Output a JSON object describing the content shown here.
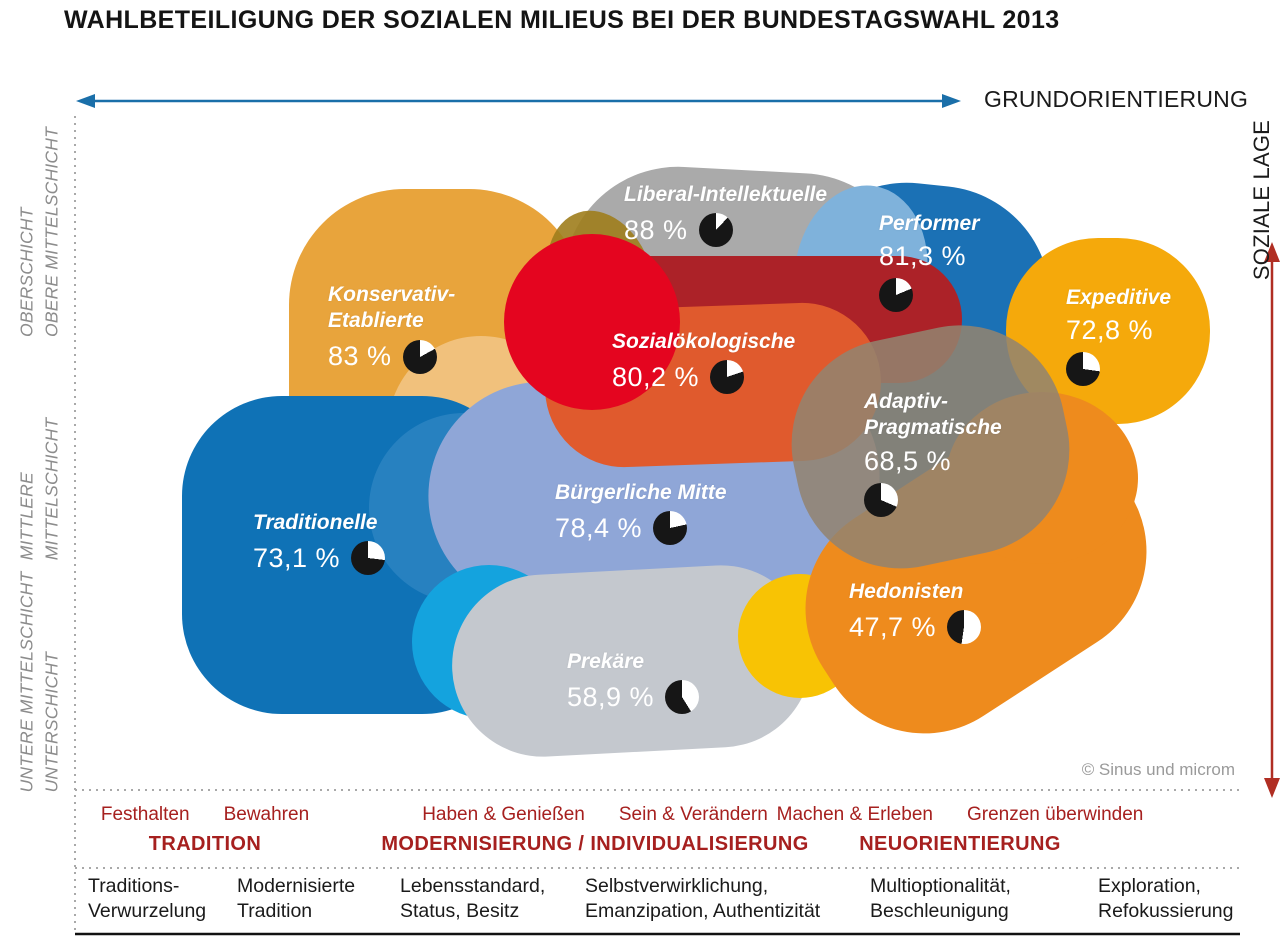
{
  "title": "WAHLBETEILIGUNG DER SOZIALEN MILIEUS BEI DER BUNDESTAGSWAHL 2013",
  "copyright": "© Sinus und microm",
  "axes": {
    "x_label": "GRUNDORIENTIERUNG",
    "y_label": "SOZIALE LAGE",
    "x_arrow_color": "#1a6fa9",
    "y_arrow_color": "#b02e23"
  },
  "social_strata": [
    {
      "lines": [
        "OBERSCHICHT",
        "OBERE MITTELSCHICHT"
      ]
    },
    {
      "lines": [
        "MITTLERE",
        "MITTELSCHICHT"
      ]
    },
    {
      "lines": [
        "UNTERE MITTELSCHICHT",
        "UNTERSCHICHT"
      ]
    }
  ],
  "orientation_groups": [
    {
      "sublabels": [
        "Festhalten",
        "Bewahren"
      ],
      "heading": "TRADITION"
    },
    {
      "sublabels": [
        "Haben & Genießen",
        "Sein & Verändern"
      ],
      "heading": "MODERNISIERUNG / INDIVIDUALISIERUNG"
    },
    {
      "sublabels": [
        "Machen & Erleben",
        "Grenzen überwinden"
      ],
      "heading": "NEUORIENTIERUNG"
    }
  ],
  "descriptors": [
    {
      "lines": [
        "Traditions-",
        "Verwurzelung"
      ]
    },
    {
      "lines": [
        "Modernisierte",
        "Tradition"
      ]
    },
    {
      "lines": [
        "Lebensstandard,",
        "Status, Besitz"
      ]
    },
    {
      "lines": [
        "Selbstverwirklichung,",
        "Emanzipation, Authentizität"
      ]
    },
    {
      "lines": [
        "Multioptionalität,",
        "Beschleunigung"
      ]
    },
    {
      "lines": [
        "Exploration,",
        "Refokussierung"
      ]
    }
  ],
  "milieus": [
    {
      "id": "konservativ-etablierte",
      "name_lines": [
        "Konservativ-",
        "Etablierte"
      ],
      "value_label": "83 %",
      "value_pct": 83.0,
      "color": "#e8a43c"
    },
    {
      "id": "liberal-intellektuelle",
      "name_lines": [
        "Liberal-Intellektuelle"
      ],
      "value_label": "88 %",
      "value_pct": 88.0,
      "color": "#aaaaaa"
    },
    {
      "id": "performer",
      "name_lines": [
        "Performer"
      ],
      "value_label": "81,3 %",
      "value_pct": 81.3,
      "color": "#1b71b5"
    },
    {
      "id": "expeditive",
      "name_lines": [
        "Expeditive"
      ],
      "value_label": "72,8 %",
      "value_pct": 72.8,
      "color": "#f5a90b"
    },
    {
      "id": "sozialoekologische",
      "name_lines": [
        "Sozialökologische"
      ],
      "value_label": "80,2 %",
      "value_pct": 80.2,
      "color": "#e05a2d"
    },
    {
      "id": "adaptiv-pragmatische",
      "name_lines": [
        "Adaptiv-",
        "Pragmatische"
      ],
      "value_label": "68,5 %",
      "value_pct": 68.5,
      "color": "#938470"
    },
    {
      "id": "traditionelle",
      "name_lines": [
        "Traditionelle"
      ],
      "value_label": "73,1 %",
      "value_pct": 73.1,
      "color": "#0f72b6"
    },
    {
      "id": "buergerliche-mitte",
      "name_lines": [
        "Bürgerliche Mitte"
      ],
      "value_label": "78,4 %",
      "value_pct": 78.4,
      "color": "#8fa6d7"
    },
    {
      "id": "prekaere",
      "name_lines": [
        "Prekäre"
      ],
      "value_label": "58,9 %",
      "value_pct": 58.9,
      "color": "#c4c8ce"
    },
    {
      "id": "hedonisten",
      "name_lines": [
        "Hedonisten"
      ],
      "value_label": "47,7 %",
      "value_pct": 47.7,
      "color": "#ee8b1d"
    }
  ],
  "pie_colors": {
    "filled": "#161616",
    "empty": "#ffffff"
  },
  "chart_data": {
    "type": "scatter",
    "title": "Wahlbeteiligung der sozialen Milieus bei der Bundestagswahl 2013",
    "xlabel": "GRUNDORIENTIERUNG",
    "ylabel": "SOZIALE LAGE",
    "x_axis_categories": [
      "TRADITION",
      "MODERNISIERUNG / INDIVIDUALISIERUNG",
      "NEUORIENTIERUNG"
    ],
    "y_axis_categories": [
      "UNTERE MITTELSCHICHT / UNTERSCHICHT",
      "MITTLERE MITTELSCHICHT",
      "OBERSCHICHT / OBERE MITTELSCHICHT"
    ],
    "value_unit": "percent voter turnout",
    "points": [
      {
        "name": "Konservativ-Etablierte",
        "turnout_pct": 83.0,
        "label": "83 %",
        "x": 22,
        "y": 75
      },
      {
        "name": "Liberal-Intellektuelle",
        "turnout_pct": 88.0,
        "label": "88 %",
        "x": 46,
        "y": 85
      },
      {
        "name": "Performer",
        "turnout_pct": 81.3,
        "label": "81,3 %",
        "x": 63,
        "y": 80
      },
      {
        "name": "Expeditive",
        "turnout_pct": 72.8,
        "label": "72,8 %",
        "x": 85,
        "y": 70
      },
      {
        "name": "Sozialökologische",
        "turnout_pct": 80.2,
        "label": "80,2 %",
        "x": 48,
        "y": 60
      },
      {
        "name": "Adaptiv-Pragmatische",
        "turnout_pct": 68.5,
        "label": "68,5 %",
        "x": 66,
        "y": 50
      },
      {
        "name": "Traditionelle",
        "turnout_pct": 73.1,
        "label": "73,1 %",
        "x": 18,
        "y": 35
      },
      {
        "name": "Bürgerliche Mitte",
        "turnout_pct": 78.4,
        "label": "78,4 %",
        "x": 44,
        "y": 42
      },
      {
        "name": "Prekäre",
        "turnout_pct": 58.9,
        "label": "58,9 %",
        "x": 42,
        "y": 15
      },
      {
        "name": "Hedonisten",
        "turnout_pct": 47.7,
        "label": "47,7 %",
        "x": 70,
        "y": 22
      }
    ]
  }
}
